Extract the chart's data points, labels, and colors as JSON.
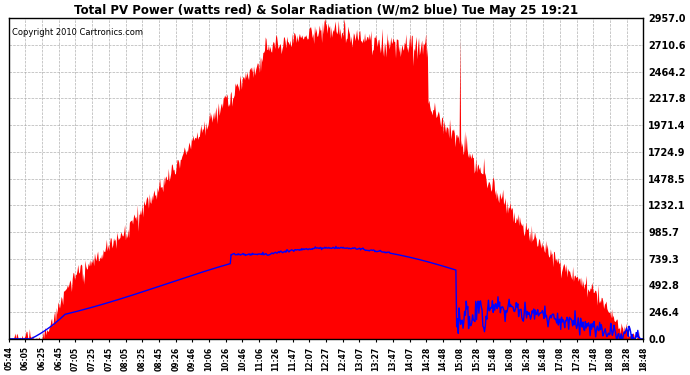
{
  "title": "Total PV Power (watts red) & Solar Radiation (W/m2 blue) Tue May 25 19:21",
  "copyright": "Copyright 2010 Cartronics.com",
  "y_ticks": [
    0.0,
    246.4,
    492.8,
    739.3,
    985.7,
    1232.1,
    1478.5,
    1724.9,
    1971.4,
    2217.8,
    2464.2,
    2710.6,
    2957.0
  ],
  "y_max": 2957.0,
  "x_labels": [
    "05:44",
    "06:05",
    "06:25",
    "06:45",
    "07:05",
    "07:25",
    "07:45",
    "08:05",
    "08:25",
    "08:45",
    "09:26",
    "09:46",
    "10:06",
    "10:26",
    "10:46",
    "11:06",
    "11:26",
    "11:47",
    "12:07",
    "12:27",
    "12:47",
    "13:07",
    "13:27",
    "13:47",
    "14:07",
    "14:28",
    "14:48",
    "15:08",
    "15:28",
    "15:48",
    "16:08",
    "16:28",
    "16:48",
    "17:08",
    "17:28",
    "17:48",
    "18:08",
    "18:28",
    "18:48"
  ],
  "background_color": "#ffffff",
  "plot_bg_color": "#ffffff",
  "grid_color": "#aaaaaa",
  "fill_color": "#ff0000",
  "line_color": "#0000ff",
  "title_color": "#000000",
  "border_color": "#000000"
}
